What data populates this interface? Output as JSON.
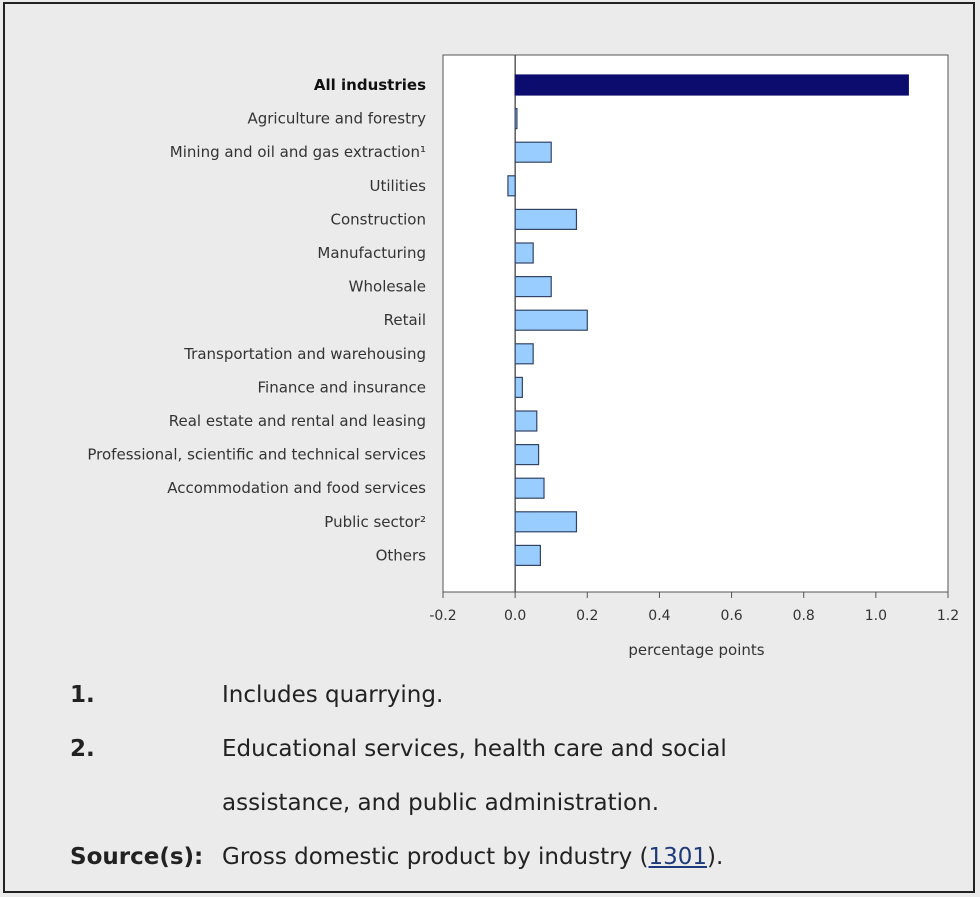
{
  "chart_data": {
    "type": "bar",
    "orientation": "horizontal",
    "categories": [
      "All industries",
      "Agriculture and forestry",
      "Mining and oil and gas extraction¹",
      "Utilities",
      "Construction",
      "Manufacturing",
      "Wholesale",
      "Retail",
      "Transportation and warehousing",
      "Finance and insurance",
      "Real estate and rental and leasing",
      "Professional, scientific and technical services",
      "Accommodation and food services",
      "Public sector²",
      "Others"
    ],
    "values": [
      1.09,
      0.005,
      0.1,
      -0.02,
      0.17,
      0.05,
      0.1,
      0.2,
      0.05,
      0.02,
      0.06,
      0.065,
      0.08,
      0.17,
      0.07
    ],
    "highlight": [
      true,
      false,
      false,
      false,
      false,
      false,
      false,
      false,
      false,
      false,
      false,
      false,
      false,
      false,
      false
    ],
    "xlabel": "percentage points",
    "xlim": [
      -0.2,
      1.2
    ],
    "xticks": [
      -0.2,
      0.0,
      0.2,
      0.4,
      0.6,
      0.8,
      1.0,
      1.2
    ],
    "xtick_labels": [
      "-0.2",
      "0.0",
      "0.2",
      "0.4",
      "0.6",
      "0.8",
      "1.0",
      "1.2"
    ],
    "colors": {
      "highlight": "#0c0c6e",
      "bar": "#99ccff",
      "bar_border": "#334466"
    },
    "grid": false
  },
  "footnotes": [
    {
      "label": "1.",
      "text": "Includes quarrying."
    },
    {
      "label": "2.",
      "text": "Educational services, health care and social assistance, and public administration."
    }
  ],
  "source": {
    "label": "Source(s):",
    "text_before": "Gross domestic product by industry (",
    "link_text": "1301",
    "text_after": ")."
  }
}
